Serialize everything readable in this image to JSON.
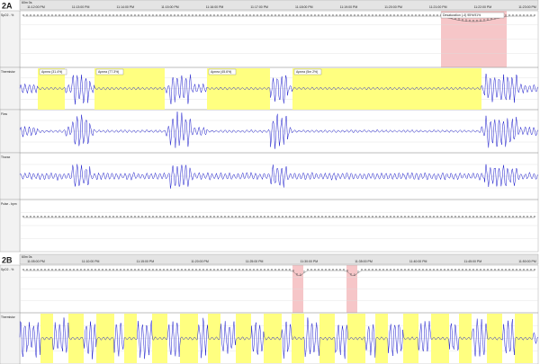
{
  "panel_a": {
    "label": "2A",
    "duration": "60m 0s",
    "times": [
      "11:12:00 PM",
      "11:13:00 PM",
      "11:14:00 PM",
      "11:15:00 PM",
      "11:16:00 PM",
      "11:17:00 PM",
      "11:18:00 PM",
      "11:19:00 PM",
      "11:20:00 PM",
      "11:21:00 PM",
      "11:22:00 PM",
      "11:23:00 PM"
    ],
    "channels": [
      "SpO2 - %",
      "Thermistor",
      "Flow",
      "Thorax",
      "Pulse - bpm"
    ],
    "apneas": [
      "Apnea (31.4%)",
      "Apnea (77.3%)",
      "Apnea (45.6%)",
      "Apnea (5m 2%)"
    ],
    "desaturation": "Desaturation (-4) 95%/91%"
  },
  "panel_b": {
    "label": "2B",
    "duration": "60m 0s",
    "times": [
      "11:05:00 PM",
      "11:10:00 PM",
      "11:15:00 PM",
      "11:20:00 PM",
      "11:25:00 PM",
      "11:30:00 PM",
      "11:35:00 PM",
      "11:40:00 PM",
      "11:45:00 PM",
      "11:50:00 PM"
    ],
    "channels": [
      "SpO2 - %",
      "Thermistor"
    ]
  }
}
